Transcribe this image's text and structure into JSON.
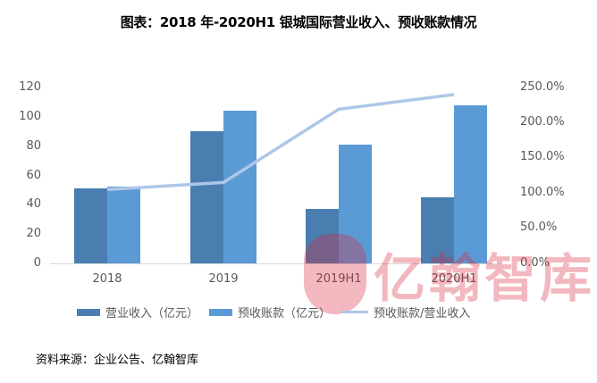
{
  "title": "图表：2018 年-2020H1 银城国际营业收入、预收账款情况",
  "source": "资料来源：企业公告、亿翰智库",
  "watermark": "亿翰智库",
  "colors": {
    "revenue": "#4a7eb0",
    "advance": "#5b9bd5",
    "ratio_line": "#aec7e8",
    "axis_text": "#595959",
    "watermark": "#d9233c"
  },
  "y_left_ticks": [
    "120",
    "100",
    "80",
    "60",
    "40",
    "20",
    "0"
  ],
  "y_right_ticks": [
    "250.0%",
    "200.0%",
    "150.0%",
    "100.0%",
    "50.0%",
    "0.0%"
  ],
  "legend": [
    {
      "label": "营业收入（亿元）",
      "type": "bar",
      "color": "#4a7eb0"
    },
    {
      "label": "预收账款（亿元）",
      "type": "bar",
      "color": "#5b9bd5"
    },
    {
      "label": "预收账款/营业收入",
      "type": "line",
      "color": "#aec7e8"
    }
  ],
  "chart_data": {
    "type": "bar",
    "title": "图表：2018 年-2020H1 银城国际营业收入、预收账款情况",
    "categories": [
      "2018",
      "2019",
      "2019H1",
      "2020H1"
    ],
    "series": [
      {
        "name": "营业收入（亿元）",
        "type": "bar",
        "axis": "left",
        "values": [
          51,
          90,
          37,
          45
        ]
      },
      {
        "name": "预收账款（亿元）",
        "type": "bar",
        "axis": "left",
        "values": [
          52.5,
          104,
          81,
          108
        ]
      },
      {
        "name": "预收账款/营业收入",
        "type": "line",
        "axis": "right",
        "unit": "%",
        "values": [
          105,
          115,
          219,
          240
        ]
      }
    ],
    "xlabel": "",
    "ylabel": "",
    "ylim": [
      0,
      120
    ],
    "y2lim": [
      0,
      250
    ],
    "y_ticks": [
      0,
      20,
      40,
      60,
      80,
      100,
      120
    ],
    "y2_ticks": [
      "0.0%",
      "50.0%",
      "100.0%",
      "150.0%",
      "200.0%",
      "250.0%"
    ],
    "grid": false,
    "legend_position": "bottom",
    "source": "资料来源：企业公告、亿翰智库"
  }
}
